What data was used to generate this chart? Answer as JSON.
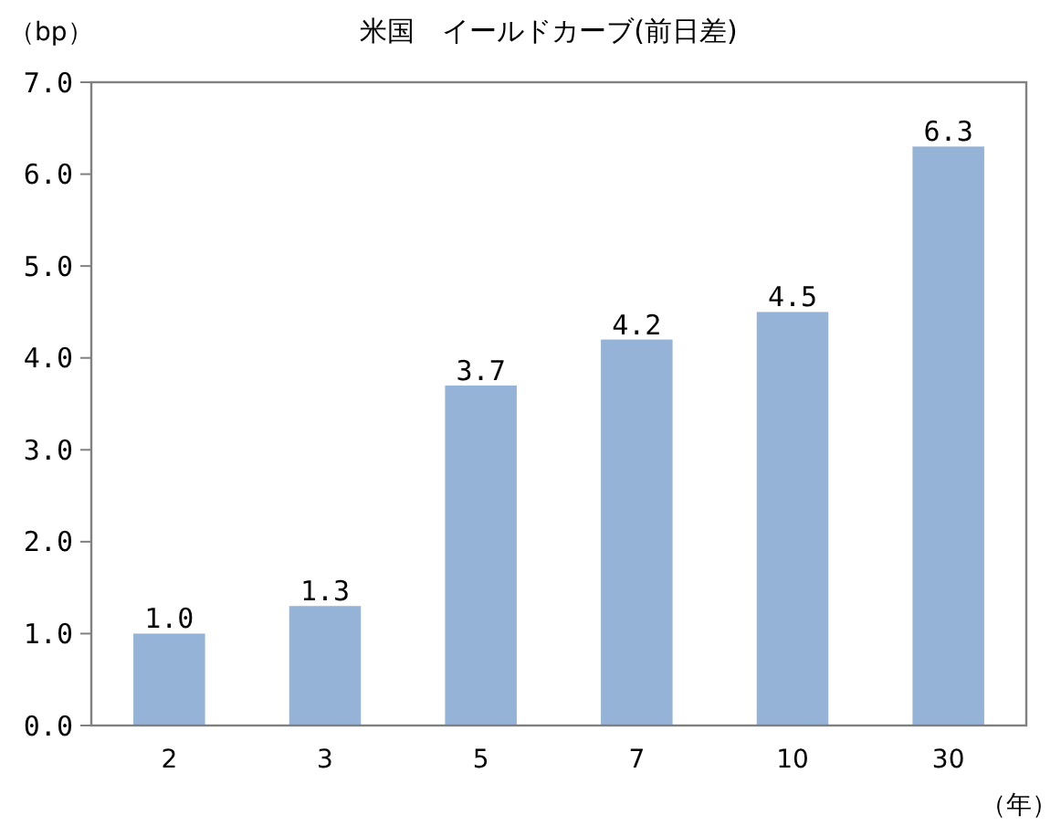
{
  "chart_data": {
    "type": "bar",
    "title": "米国　イールドカーブ(前日差)",
    "ylabel": "（bp）",
    "xlabel": "（年）",
    "categories": [
      "2",
      "3",
      "5",
      "7",
      "10",
      "30"
    ],
    "values": [
      1.0,
      1.3,
      3.7,
      4.2,
      4.5,
      6.3
    ],
    "value_labels": [
      "1.0",
      "1.3",
      "3.7",
      "4.2",
      "4.5",
      "6.3"
    ],
    "color": "#95b3d7",
    "ylim": [
      0,
      7
    ],
    "yticks": [
      {
        "value": 0,
        "label": "0.0"
      },
      {
        "value": 1,
        "label": "1.0"
      },
      {
        "value": 2,
        "label": "2.0"
      },
      {
        "value": 3,
        "label": "3.0"
      },
      {
        "value": 4,
        "label": "4.0"
      },
      {
        "value": 5,
        "label": "5.0"
      },
      {
        "value": 6,
        "label": "6.0"
      },
      {
        "value": 7,
        "label": "7.0"
      }
    ],
    "grid": false
  }
}
